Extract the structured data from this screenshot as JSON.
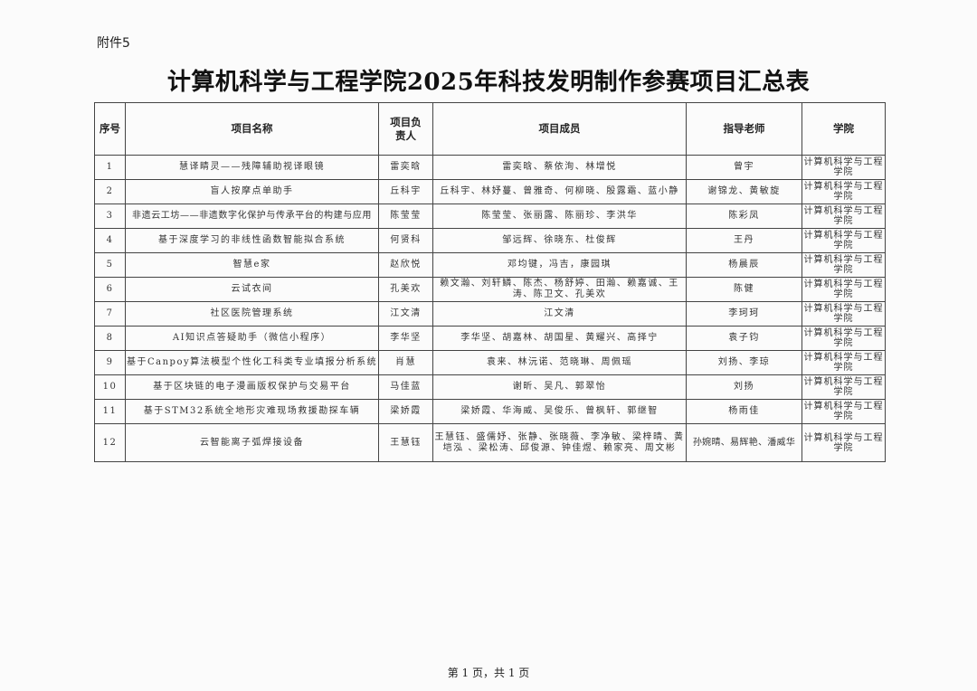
{
  "attachment_label": "附件5",
  "title": "计算机科学与工程学院2025年科技发明制作参赛项目汇总表",
  "table": {
    "headers": [
      "序号",
      "项目名称",
      "项目负责人",
      "项目成员",
      "指导老师",
      "学院"
    ],
    "rows": [
      {
        "no": "1",
        "name": "慧译睛灵——残障辅助视译眼镜",
        "leader": "雷奕晗",
        "members": "雷奕晗、蔡依洵、林增悦",
        "advisor": "曾宇",
        "school": "计算机科学与工程学院"
      },
      {
        "no": "2",
        "name": "盲人按摩点单助手",
        "leader": "丘科宇",
        "members": "丘科宇、林妤蔓、曾雅奇、何柳晓、殷露霜、蓝小静",
        "advisor": "谢锦龙、黄敏旋",
        "school": "计算机科学与工程学院"
      },
      {
        "no": "3",
        "name": "非遗云工坊——非遗数字化保护与传承平台的构建与应用",
        "leader": "陈莹莹",
        "members": "陈莹莹、张丽露、陈丽珍、李洪华",
        "advisor": "陈彩凤",
        "school": "计算机科学与工程学院"
      },
      {
        "no": "4",
        "name": "基于深度学习的非线性函数智能拟合系统",
        "leader": "何贤科",
        "members": "邹远辉、徐晓东、杜俊辉",
        "advisor": "王丹",
        "school": "计算机科学与工程学院"
      },
      {
        "no": "5",
        "name": "智慧e家",
        "leader": "赵欣悦",
        "members": "邓均键，冯吉，康园琪",
        "advisor": "杨晨辰",
        "school": "计算机科学与工程学院"
      },
      {
        "no": "6",
        "name": "云试衣间",
        "leader": "孔美欢",
        "members": "赖文瀚、刘轩鳞、陈杰、杨舒婷、田瀚、赖嘉诚、王涛、陈卫文、孔美欢",
        "advisor": "陈健",
        "school": "计算机科学与工程学院"
      },
      {
        "no": "7",
        "name": "社区医院管理系统",
        "leader": "江文清",
        "members": "江文清",
        "advisor": "李珂珂",
        "school": "计算机科学与工程学院"
      },
      {
        "no": "8",
        "name": "AI知识点答疑助手（微信小程序）",
        "leader": "李华坚",
        "members": "李华坚、胡嘉林、胡国星、黄耀兴、高择宁",
        "advisor": "袁子钧",
        "school": "计算机科学与工程学院"
      },
      {
        "no": "9",
        "name": "基于Canpoy算法模型个性化工科类专业填报分析系统",
        "leader": "肖慧",
        "members": "袁来、林沅诺、范晓琳、周佩瑶",
        "advisor": "刘扬、李琼",
        "school": "计算机科学与工程学院"
      },
      {
        "no": "10",
        "name": "基于区块链的电子漫画版权保护与交易平台",
        "leader": "马佳蓝",
        "members": "谢昕、吴凡、郭翠怡",
        "advisor": "刘扬",
        "school": "计算机科学与工程学院"
      },
      {
        "no": "11",
        "name": "基于STM32系统全地形灾难现场救援勘探车辆",
        "leader": "梁娇霞",
        "members": "梁娇霞、华海威、吴俊乐、曾枫轩、郭继智",
        "advisor": "杨雨佳",
        "school": "计算机科学与工程学院"
      },
      {
        "no": "12",
        "name": "云智能离子弧焊接设备",
        "leader": "王慧钰",
        "members": "王慧钰、盛儒妤、张静、张晓薇、李净敏、梁梓晴、黄垲泓 、梁松涛、邱俊源、钟佳煜、赖家亮、周文彬",
        "advisor": "孙婉晴、易辉艳、潘威华",
        "school": "计算机科学与工程学院"
      }
    ]
  },
  "footer": "第 1 页，共 1 页"
}
